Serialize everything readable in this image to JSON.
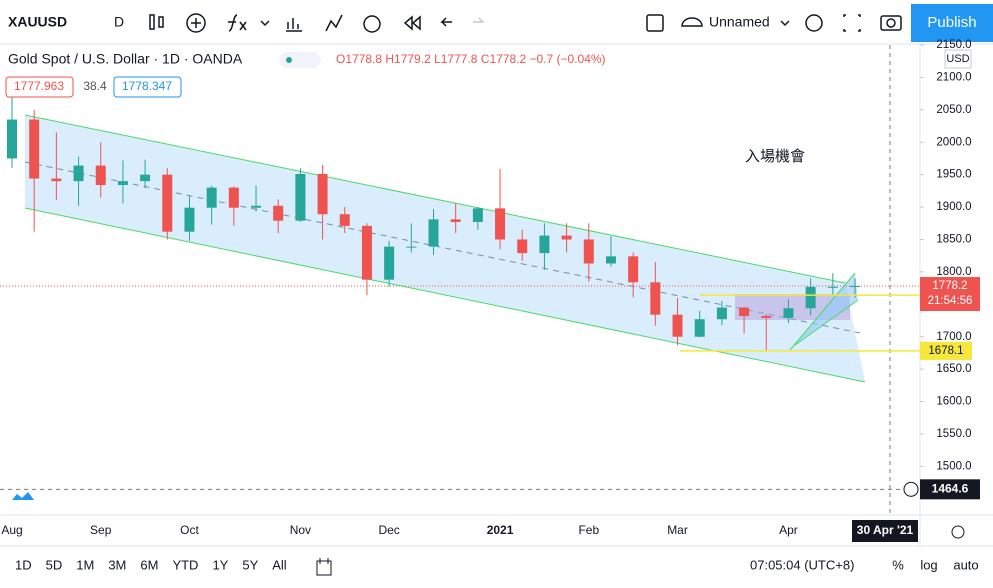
{
  "toolbar": {
    "symbol": "XAUUSD",
    "interval": "D",
    "layout_name": "Unnamed",
    "publish": "Publish"
  },
  "legend": {
    "title": "Gold Spot / U.S. Dollar · 1D · OANDA",
    "ohlc": "O1778.8 H1779.2 L1777.8 C1778.2 −0.7 (−0.04%)",
    "bid": 1777.963,
    "spread": 38.4,
    "ask": 1778.347
  },
  "chart_data": {
    "type": "candlestick",
    "annotation": "入場機會",
    "categories": [
      "Aug",
      null,
      null,
      null,
      "Sep",
      null,
      null,
      null,
      "Oct",
      null,
      null,
      null,
      null,
      "Nov",
      null,
      null,
      null,
      "Dec",
      null,
      null,
      null,
      null,
      "2021",
      null,
      null,
      null,
      "Feb",
      null,
      null,
      null,
      "Mar",
      null,
      null,
      null,
      null,
      "Apr",
      null,
      null,
      null
    ],
    "open": [
      1975,
      2035,
      1944,
      1940,
      1964,
      1934,
      1940,
      1950,
      1862,
      1899,
      1930,
      1899,
      1902,
      1879,
      1951,
      1889,
      1871,
      1788,
      1839,
      1839,
      1881,
      1877,
      1898,
      1850,
      1829,
      1856,
      1850,
      1813,
      1824,
      1784,
      1734,
      1700,
      1727,
      1745,
      1732,
      1729,
      1744,
      1777,
      1777
    ],
    "high": [
      2075,
      2050,
      2015,
      1978,
      2000,
      1972,
      1973,
      1960,
      1917,
      1933,
      1932,
      1933,
      1912,
      1960,
      1965,
      1900,
      1875,
      1848,
      1875,
      1897,
      1906,
      1900,
      1959,
      1865,
      1875,
      1875,
      1875,
      1855,
      1830,
      1815,
      1760,
      1740,
      1755,
      1746,
      1735,
      1758,
      1790,
      1798,
      1790
    ],
    "low": [
      1960,
      1862,
      1911,
      1902,
      1915,
      1906,
      1929,
      1850,
      1848,
      1873,
      1871,
      1893,
      1860,
      1877,
      1850,
      1860,
      1764,
      1777,
      1830,
      1826,
      1860,
      1865,
      1835,
      1817,
      1803,
      1830,
      1785,
      1808,
      1761,
      1717,
      1687,
      1699,
      1718,
      1705,
      1677,
      1721,
      1733,
      1763,
      1760
    ],
    "close": [
      2035,
      1944,
      1940,
      1964,
      1934,
      1940,
      1950,
      1862,
      1899,
      1930,
      1899,
      1902,
      1879,
      1951,
      1889,
      1871,
      1788,
      1839,
      1839,
      1881,
      1877,
      1898,
      1850,
      1829,
      1856,
      1850,
      1813,
      1824,
      1784,
      1734,
      1700,
      1727,
      1745,
      1732,
      1729,
      1744,
      1777,
      1777,
      1778.2
    ],
    "up_color": "#26a69a",
    "down_color": "#ef5350",
    "ylim": [
      1425,
      2150
    ],
    "yticks": [
      {
        "value": 1500,
        "label": "1500.0"
      },
      {
        "value": 1550,
        "label": "1550.0"
      },
      {
        "value": 1600,
        "label": "1600.0"
      },
      {
        "value": 1650,
        "label": "1650.0"
      },
      {
        "value": 1700,
        "label": "1700.0"
      },
      {
        "value": 1750,
        "label": "1750.0"
      },
      {
        "value": 1800,
        "label": "1800.0"
      },
      {
        "value": 1850,
        "label": "1850.0"
      },
      {
        "value": 1900,
        "label": "1900.0"
      },
      {
        "value": 1950,
        "label": "1950.0"
      },
      {
        "value": 2000,
        "label": "2000.0"
      },
      {
        "value": 2050,
        "label": "2050.0"
      },
      {
        "value": 2100,
        "label": "2100.0"
      },
      {
        "value": 2150,
        "label": "2150.0"
      }
    ],
    "currency": "USD",
    "last_price": {
      "value": 1778.2,
      "countdown": "21:54:56",
      "color": "#ef5350"
    },
    "hlines": [
      {
        "value": 1764.1,
        "color": "#f5e83a"
      },
      {
        "value": 1678.1,
        "color": "#f5e83a"
      }
    ],
    "crosshair": {
      "value": 1464.6,
      "date": "30 Apr '21"
    }
  },
  "bottom_bar": {
    "ranges": [
      "1D",
      "5D",
      "1M",
      "3M",
      "6M",
      "YTD",
      "1Y",
      "5Y",
      "All"
    ],
    "clock": "07:05:04 (UTC+8)",
    "percent": "%",
    "log": "log",
    "auto": "auto"
  }
}
